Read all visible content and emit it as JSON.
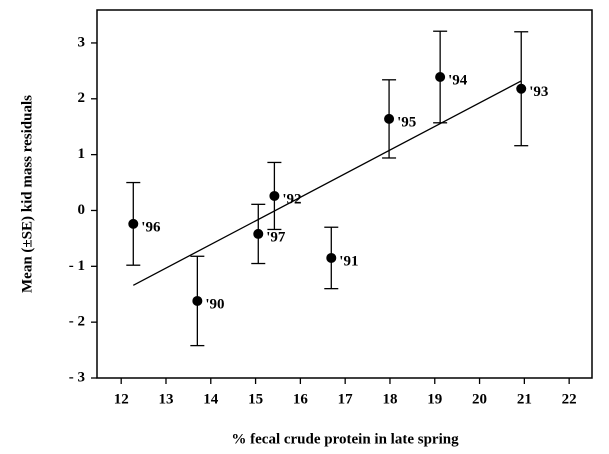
{
  "chart_data": {
    "type": "scatter",
    "xlabel": "% fecal crude protein in late spring",
    "ylabel": "Mean (±SE) kid mass residuals",
    "xlim": [
      11.46,
      22.51
    ],
    "ylim": [
      -3,
      3.59
    ],
    "xticks": [
      12,
      13,
      14,
      15,
      16,
      17,
      18,
      19,
      20,
      21,
      22
    ],
    "yticks": [
      {
        "value": -3,
        "label": "- 3"
      },
      {
        "value": -2,
        "label": "- 2"
      },
      {
        "value": -1,
        "label": "- 1"
      },
      0,
      1,
      2,
      3
    ],
    "color": "#000000",
    "series": [
      {
        "x": [
          12.27,
          13.7,
          15.06,
          15.42,
          16.69,
          17.98,
          19.12,
          20.93
        ],
        "values": [
          -0.24,
          -1.62,
          -0.42,
          0.26,
          -0.85,
          1.64,
          2.39,
          2.18
        ],
        "errors": [
          0.74,
          0.8,
          0.53,
          0.6,
          0.55,
          0.7,
          0.82,
          1.02
        ],
        "labels": [
          "'96",
          "'90",
          "'97",
          "'92",
          "'91",
          "'95",
          "'94",
          "'93"
        ]
      }
    ],
    "fit_line": {
      "x": [
        12.27,
        20.93
      ],
      "y": [
        -1.34,
        2.32
      ]
    }
  }
}
